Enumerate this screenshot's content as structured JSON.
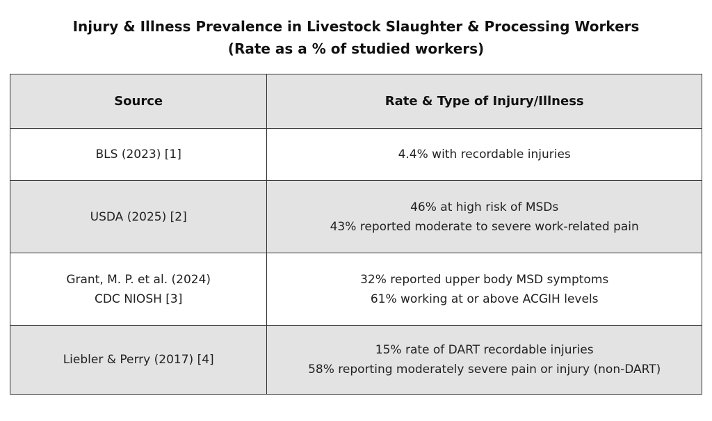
{
  "title": {
    "line1": "Injury & Illness Prevalence in Livestock Slaughter & Processing Workers",
    "line2": "(Rate as a % of studied workers)"
  },
  "table": {
    "headers": {
      "source": "Source",
      "rate": "Rate & Type of Injury/Illness"
    },
    "rows": [
      {
        "source": [
          "BLS (2023) [1]"
        ],
        "rate": [
          "4.4% with recordable injuries"
        ]
      },
      {
        "source": [
          "USDA (2025) [2]"
        ],
        "rate": [
          "46% at high risk of MSDs",
          "43% reported moderate to severe work-related pain"
        ]
      },
      {
        "source": [
          "Grant, M. P. et al. (2024)",
          "CDC NIOSH [3]"
        ],
        "rate": [
          "32% reported upper body MSD symptoms",
          "61% working at or above ACGIH levels"
        ]
      },
      {
        "source": [
          "Liebler & Perry (2017) [4]"
        ],
        "rate": [
          "15% rate of DART recordable injuries",
          "58% reporting moderately severe pain or injury (non-DART)"
        ]
      }
    ]
  },
  "colors": {
    "header_bg": "#e3e3e3",
    "shaded_row_bg": "#e3e3e3",
    "plain_row_bg": "#ffffff",
    "border": "#333333"
  }
}
